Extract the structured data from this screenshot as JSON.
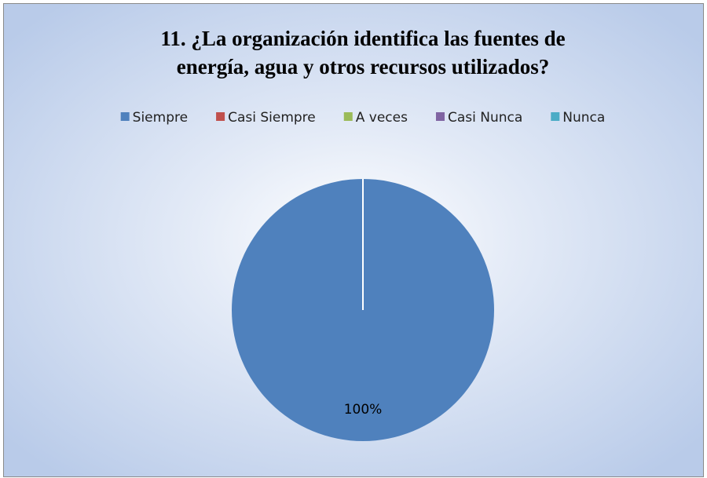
{
  "chart_data": {
    "type": "pie",
    "title": [
      "11.  ¿La organización identifica las fuentes de",
      "energía, agua y otros recursos utilizados?"
    ],
    "categories": [
      "Siempre",
      "Casi Siempre",
      "A veces",
      "Casi Nunca",
      "Nunca"
    ],
    "values": [
      100,
      0,
      0,
      0,
      0
    ],
    "value_labels": [
      "100%",
      null,
      null,
      null,
      null
    ],
    "colors": [
      "#4f81bd",
      "#c0504d",
      "#9bbb59",
      "#8064a2",
      "#4bacc6"
    ],
    "legend": "top"
  }
}
